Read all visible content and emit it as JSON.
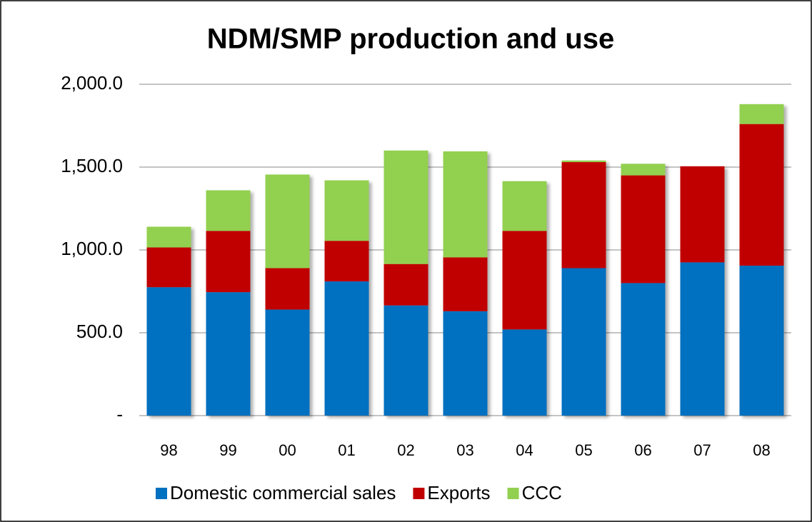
{
  "chart_data": {
    "type": "stacked_bar",
    "title": "NDM/SMP production and use",
    "categories": [
      "98",
      "99",
      "00",
      "01",
      "02",
      "03",
      "04",
      "05",
      "06",
      "07",
      "08"
    ],
    "series": [
      {
        "name": "Domestic commercial sales",
        "color": "#0070c0",
        "values": [
          775,
          745,
          640,
          810,
          665,
          630,
          520,
          890,
          800,
          925,
          905
        ]
      },
      {
        "name": "Exports",
        "color": "#c00000",
        "values": [
          240,
          370,
          250,
          245,
          250,
          325,
          595,
          640,
          650,
          580,
          855
        ]
      },
      {
        "name": "CCC",
        "color": "#92d050",
        "values": [
          125,
          245,
          565,
          365,
          685,
          640,
          300,
          10,
          70,
          0,
          120
        ]
      }
    ],
    "ylim": [
      0,
      2000
    ],
    "yticks": [
      {
        "value": 0,
        "label": "-"
      },
      {
        "value": 500,
        "label": "500.0"
      },
      {
        "value": 1000,
        "label": "1,000.0"
      },
      {
        "value": 1500,
        "label": "1,500.0"
      },
      {
        "value": 2000,
        "label": "2,000.0"
      }
    ],
    "grid": true,
    "legend": "bottom"
  }
}
